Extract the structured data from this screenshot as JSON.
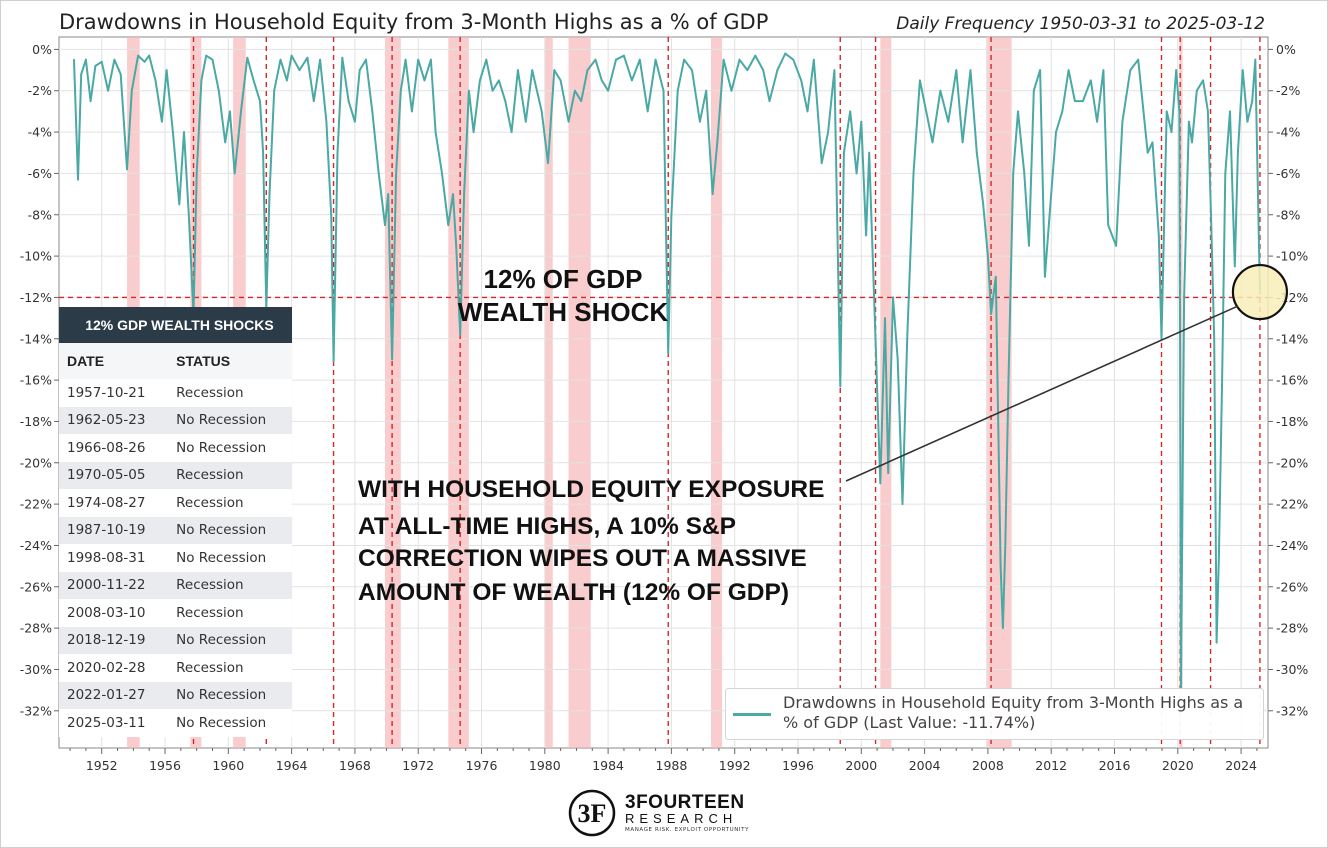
{
  "title": "Drawdowns in Household Equity from 3-Month Highs as a % of GDP",
  "subtitle": "Daily Frequency 1950-03-31 to 2025-03-12",
  "chart_data": {
    "type": "line",
    "x_range": [
      1949.3,
      2025.7
    ],
    "ylim": [
      -33.8,
      0.6
    ],
    "x_ticks": [
      "1952",
      "1956",
      "1960",
      "1964",
      "1968",
      "1972",
      "1976",
      "1980",
      "1984",
      "1988",
      "1992",
      "1996",
      "2000",
      "2004",
      "2008",
      "2012",
      "2016",
      "2020",
      "2024"
    ],
    "y_ticks": [
      "0%",
      "-2%",
      "-4%",
      "-6%",
      "-8%",
      "-10%",
      "-12%",
      "-14%",
      "-16%",
      "-18%",
      "-20%",
      "-22%",
      "-24%",
      "-26%",
      "-28%",
      "-30%",
      "-32%"
    ],
    "grid": true,
    "line_color": "#4aa9a4",
    "series": [
      {
        "name": "Drawdowns in Household Equity from 3-Month Highs as a % of GDP (Last Value: -11.74%)",
        "values": [
          [
            1950.25,
            -0.5
          ],
          [
            1950.5,
            -6.3
          ],
          [
            1950.7,
            -1.2
          ],
          [
            1951.0,
            -0.5
          ],
          [
            1951.3,
            -2.5
          ],
          [
            1951.6,
            -0.8
          ],
          [
            1952.0,
            -0.6
          ],
          [
            1952.4,
            -2.0
          ],
          [
            1952.8,
            -0.5
          ],
          [
            1953.2,
            -1.2
          ],
          [
            1953.6,
            -5.8
          ],
          [
            1953.9,
            -2.0
          ],
          [
            1954.3,
            -0.3
          ],
          [
            1954.7,
            -0.6
          ],
          [
            1955.0,
            -0.3
          ],
          [
            1955.4,
            -1.5
          ],
          [
            1955.8,
            -3.5
          ],
          [
            1956.1,
            -1.0
          ],
          [
            1956.5,
            -4.0
          ],
          [
            1956.9,
            -7.5
          ],
          [
            1957.2,
            -4.0
          ],
          [
            1957.5,
            -8.0
          ],
          [
            1957.8,
            -12.8
          ],
          [
            1958.0,
            -6.0
          ],
          [
            1958.3,
            -1.5
          ],
          [
            1958.6,
            -0.3
          ],
          [
            1959.0,
            -0.5
          ],
          [
            1959.4,
            -2.0
          ],
          [
            1959.8,
            -4.5
          ],
          [
            1960.1,
            -3.0
          ],
          [
            1960.4,
            -6.0
          ],
          [
            1960.8,
            -3.0
          ],
          [
            1961.2,
            -0.4
          ],
          [
            1961.6,
            -1.5
          ],
          [
            1962.0,
            -2.5
          ],
          [
            1962.2,
            -5.0
          ],
          [
            1962.4,
            -12.5
          ],
          [
            1962.6,
            -7.0
          ],
          [
            1962.9,
            -2.0
          ],
          [
            1963.3,
            -0.5
          ],
          [
            1963.7,
            -1.5
          ],
          [
            1964.0,
            -0.3
          ],
          [
            1964.5,
            -1.0
          ],
          [
            1965.0,
            -0.4
          ],
          [
            1965.4,
            -2.5
          ],
          [
            1965.8,
            -0.5
          ],
          [
            1966.2,
            -3.5
          ],
          [
            1966.5,
            -8.0
          ],
          [
            1966.65,
            -15.1
          ],
          [
            1966.9,
            -5.0
          ],
          [
            1967.2,
            -0.4
          ],
          [
            1967.6,
            -2.5
          ],
          [
            1968.0,
            -3.5
          ],
          [
            1968.3,
            -1.0
          ],
          [
            1968.7,
            -0.5
          ],
          [
            1969.1,
            -3.0
          ],
          [
            1969.5,
            -6.0
          ],
          [
            1969.9,
            -8.5
          ],
          [
            1970.1,
            -7.0
          ],
          [
            1970.35,
            -15.0
          ],
          [
            1970.6,
            -6.0
          ],
          [
            1970.9,
            -2.0
          ],
          [
            1971.2,
            -0.5
          ],
          [
            1971.6,
            -3.0
          ],
          [
            1972.0,
            -0.5
          ],
          [
            1972.4,
            -1.5
          ],
          [
            1972.8,
            -0.5
          ],
          [
            1973.1,
            -4.0
          ],
          [
            1973.5,
            -6.0
          ],
          [
            1973.9,
            -8.5
          ],
          [
            1974.2,
            -7.0
          ],
          [
            1974.4,
            -9.5
          ],
          [
            1974.65,
            -13.8
          ],
          [
            1974.9,
            -7.0
          ],
          [
            1975.2,
            -2.0
          ],
          [
            1975.5,
            -4.0
          ],
          [
            1975.9,
            -1.5
          ],
          [
            1976.3,
            -0.5
          ],
          [
            1976.7,
            -2.0
          ],
          [
            1977.1,
            -1.5
          ],
          [
            1977.5,
            -2.5
          ],
          [
            1977.9,
            -4.0
          ],
          [
            1978.3,
            -1.0
          ],
          [
            1978.8,
            -3.5
          ],
          [
            1979.2,
            -1.0
          ],
          [
            1979.8,
            -3.0
          ],
          [
            1980.2,
            -5.5
          ],
          [
            1980.6,
            -1.0
          ],
          [
            1981.0,
            -1.5
          ],
          [
            1981.5,
            -3.5
          ],
          [
            1981.9,
            -2.0
          ],
          [
            1982.3,
            -2.5
          ],
          [
            1982.7,
            -1.0
          ],
          [
            1983.2,
            -0.5
          ],
          [
            1983.6,
            -1.5
          ],
          [
            1984.0,
            -2.0
          ],
          [
            1984.5,
            -0.5
          ],
          [
            1985.0,
            -0.3
          ],
          [
            1985.5,
            -1.5
          ],
          [
            1986.0,
            -0.5
          ],
          [
            1986.5,
            -3.0
          ],
          [
            1987.0,
            -0.5
          ],
          [
            1987.5,
            -2.0
          ],
          [
            1987.8,
            -14.7
          ],
          [
            1988.0,
            -8.0
          ],
          [
            1988.4,
            -2.0
          ],
          [
            1988.8,
            -0.5
          ],
          [
            1989.3,
            -1.0
          ],
          [
            1989.8,
            -3.5
          ],
          [
            1990.2,
            -2.0
          ],
          [
            1990.6,
            -7.0
          ],
          [
            1990.9,
            -4.5
          ],
          [
            1991.3,
            -0.5
          ],
          [
            1991.8,
            -2.0
          ],
          [
            1992.3,
            -0.5
          ],
          [
            1992.8,
            -1.0
          ],
          [
            1993.3,
            -0.3
          ],
          [
            1993.8,
            -1.0
          ],
          [
            1994.2,
            -2.5
          ],
          [
            1994.7,
            -1.0
          ],
          [
            1995.2,
            -0.2
          ],
          [
            1995.7,
            -0.5
          ],
          [
            1996.2,
            -1.5
          ],
          [
            1996.6,
            -3.0
          ],
          [
            1997.0,
            -0.5
          ],
          [
            1997.5,
            -5.5
          ],
          [
            1997.9,
            -4.0
          ],
          [
            1998.3,
            -1.0
          ],
          [
            1998.67,
            -16.3
          ],
          [
            1998.9,
            -5.0
          ],
          [
            1999.3,
            -3.0
          ],
          [
            1999.7,
            -6.0
          ],
          [
            2000.0,
            -3.5
          ],
          [
            2000.3,
            -9.0
          ],
          [
            2000.5,
            -5.0
          ],
          [
            2000.9,
            -14.0
          ],
          [
            2001.2,
            -21.0
          ],
          [
            2001.5,
            -13.0
          ],
          [
            2001.7,
            -20.5
          ],
          [
            2002.0,
            -12.0
          ],
          [
            2002.3,
            -15.0
          ],
          [
            2002.6,
            -22.0
          ],
          [
            2002.9,
            -14.0
          ],
          [
            2003.3,
            -6.0
          ],
          [
            2003.7,
            -1.5
          ],
          [
            2004.1,
            -3.0
          ],
          [
            2004.5,
            -4.5
          ],
          [
            2005.0,
            -2.0
          ],
          [
            2005.5,
            -3.5
          ],
          [
            2006.0,
            -1.0
          ],
          [
            2006.4,
            -4.5
          ],
          [
            2006.9,
            -1.0
          ],
          [
            2007.3,
            -5.0
          ],
          [
            2007.7,
            -7.5
          ],
          [
            2008.0,
            -10.0
          ],
          [
            2008.2,
            -12.8
          ],
          [
            2008.5,
            -11.0
          ],
          [
            2008.8,
            -25.0
          ],
          [
            2008.95,
            -28.0
          ],
          [
            2009.1,
            -24.0
          ],
          [
            2009.3,
            -16.0
          ],
          [
            2009.6,
            -6.0
          ],
          [
            2009.9,
            -3.0
          ],
          [
            2010.3,
            -6.0
          ],
          [
            2010.6,
            -9.5
          ],
          [
            2010.9,
            -2.0
          ],
          [
            2011.3,
            -1.0
          ],
          [
            2011.6,
            -11.0
          ],
          [
            2011.9,
            -8.0
          ],
          [
            2012.3,
            -4.0
          ],
          [
            2012.7,
            -3.0
          ],
          [
            2013.1,
            -1.0
          ],
          [
            2013.5,
            -2.5
          ],
          [
            2014.0,
            -2.5
          ],
          [
            2014.5,
            -1.5
          ],
          [
            2014.9,
            -3.5
          ],
          [
            2015.3,
            -1.0
          ],
          [
            2015.6,
            -8.5
          ],
          [
            2016.1,
            -9.5
          ],
          [
            2016.5,
            -3.5
          ],
          [
            2017.0,
            -1.0
          ],
          [
            2017.5,
            -0.5
          ],
          [
            2018.1,
            -5.0
          ],
          [
            2018.4,
            -4.5
          ],
          [
            2018.8,
            -9.0
          ],
          [
            2018.97,
            -14.0
          ],
          [
            2019.3,
            -3.0
          ],
          [
            2019.6,
            -4.0
          ],
          [
            2019.9,
            -1.0
          ],
          [
            2020.1,
            -3.0
          ],
          [
            2020.2,
            -31.0
          ],
          [
            2020.4,
            -12.0
          ],
          [
            2020.7,
            -3.5
          ],
          [
            2020.9,
            -4.5
          ],
          [
            2021.2,
            -2.0
          ],
          [
            2021.6,
            -1.5
          ],
          [
            2021.9,
            -3.0
          ],
          [
            2022.1,
            -8.0
          ],
          [
            2022.3,
            -14.0
          ],
          [
            2022.45,
            -28.7
          ],
          [
            2022.6,
            -24.5
          ],
          [
            2022.8,
            -16.0
          ],
          [
            2023.0,
            -6.0
          ],
          [
            2023.3,
            -3.0
          ],
          [
            2023.6,
            -10.5
          ],
          [
            2023.8,
            -5.0
          ],
          [
            2024.1,
            -1.0
          ],
          [
            2024.4,
            -3.5
          ],
          [
            2024.7,
            -2.5
          ],
          [
            2024.9,
            -0.5
          ],
          [
            2025.19,
            -11.74
          ]
        ]
      }
    ],
    "recession_shading": [
      [
        1953.6,
        1954.4
      ],
      [
        1957.6,
        1958.3
      ],
      [
        1960.3,
        1961.1
      ],
      [
        1969.9,
        1970.9
      ],
      [
        1973.9,
        1975.2
      ],
      [
        1980.0,
        1980.5
      ],
      [
        1981.5,
        1982.9
      ],
      [
        1990.5,
        1991.2
      ],
      [
        2001.2,
        2001.9
      ],
      [
        2007.9,
        2009.5
      ],
      [
        2020.1,
        2020.3
      ]
    ],
    "shock_lines": [
      1957.8,
      1962.4,
      1966.65,
      1970.35,
      1974.65,
      1987.8,
      1998.67,
      2000.9,
      2008.2,
      2018.97,
      2020.15,
      2022.07,
      2025.19
    ],
    "threshold_line": -12,
    "annotations": {
      "threshold_label": [
        "12% OF GDP",
        "WEALTH SHOCK"
      ],
      "commentary": [
        "WITH HOUSEHOLD EQUITY EXPOSURE",
        "AT ALL-TIME HIGHS, A 10% S&P",
        "CORRECTION WIPES OUT A MASSIVE",
        "AMOUNT OF WEALTH (12% OF GDP)"
      ]
    },
    "legend_position": "bottom-right"
  },
  "table": {
    "title": "12% GDP WEALTH SHOCKS",
    "headers": [
      "DATE",
      "STATUS"
    ],
    "rows": [
      [
        "1957-10-21",
        "Recession"
      ],
      [
        "1962-05-23",
        "No Recession"
      ],
      [
        "1966-08-26",
        "No Recession"
      ],
      [
        "1970-05-05",
        "Recession"
      ],
      [
        "1974-08-27",
        "Recession"
      ],
      [
        "1987-10-19",
        "No Recession"
      ],
      [
        "1998-08-31",
        "No Recession"
      ],
      [
        "2000-11-22",
        "Recession"
      ],
      [
        "2008-03-10",
        "Recession"
      ],
      [
        "2018-12-19",
        "No Recession"
      ],
      [
        "2020-02-28",
        "Recession"
      ],
      [
        "2022-01-27",
        "No Recession"
      ],
      [
        "2025-03-11",
        "No Recession"
      ]
    ]
  },
  "logo": {
    "brand": "3FOURTEEN",
    "brand_sub": "RESEARCH",
    "tagline": "MANAGE RISK. EXPLOIT OPPORTUNITY",
    "mark": "3F"
  }
}
